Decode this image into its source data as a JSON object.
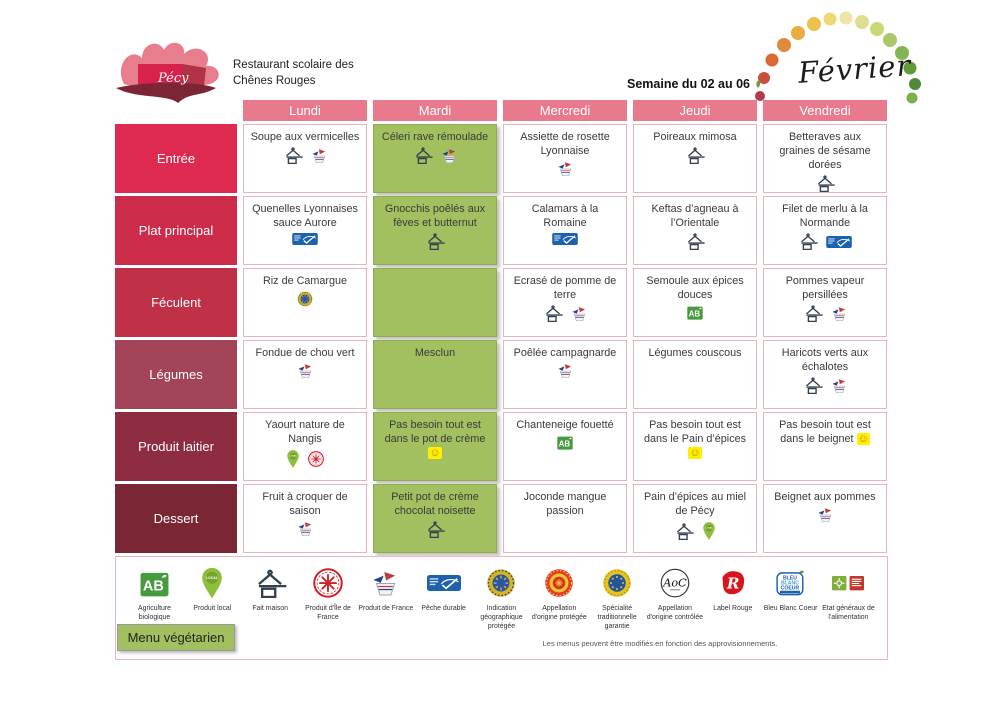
{
  "header": {
    "title_line1": "Restaurant scolaire des",
    "title_line2": "Chênes Rouges",
    "week": "Semaine du 02 au 06",
    "month": "Février",
    "logo_text": "Pécy"
  },
  "days": [
    "Lundi",
    "Mardi",
    "Mercredi",
    "Jeudi",
    "Vendredi"
  ],
  "colors": {
    "day_header": "#e9798c",
    "green_cell": "#a2c05f",
    "cell_border": "#eab3bc"
  },
  "menu": {
    "rows": [
      {
        "label": "Entrée",
        "color": "#de2950",
        "cells": [
          {
            "text": "Soupe aux vermicelles",
            "icons": [
              "fait-maison",
              "produit-de-france"
            ]
          },
          {
            "text": "Céleri rave rémoulade",
            "green": true,
            "icons": [
              "fait-maison",
              "produit-de-france"
            ]
          },
          {
            "text": "Assiette de rosette Lyonnaise",
            "icons": [
              "produit-de-france"
            ]
          },
          {
            "text": "Poireaux mimosa",
            "icons": [
              "fait-maison"
            ]
          },
          {
            "text": "Betteraves aux graines de sésame dorées",
            "icons": [
              "fait-maison"
            ]
          }
        ]
      },
      {
        "label": "Plat principal",
        "color": "#cd2b4a",
        "cells": [
          {
            "text": "Quenelles Lyonnaises sauce Aurore",
            "icons": [
              "peche-durable"
            ]
          },
          {
            "text": "Gnocchis poêlés aux fèves et butternut",
            "green": true,
            "icons": [
              "fait-maison"
            ]
          },
          {
            "text": "Calamars à la Romaine",
            "icons": [
              "peche-durable"
            ]
          },
          {
            "text": "Keftas d’agneau à l’Orientale",
            "icons": [
              "fait-maison"
            ]
          },
          {
            "text": "Filet de merlu à la Normande",
            "icons": [
              "fait-maison",
              "peche-durable"
            ]
          }
        ]
      },
      {
        "label": "Féculent",
        "color": "#c03148",
        "cells": [
          {
            "text": "Riz de Camargue",
            "icons": [
              "igp"
            ]
          },
          {
            "text": "",
            "green": true,
            "icons": []
          },
          {
            "text": "Ecrasé de pomme de terre",
            "icons": [
              "fait-maison",
              "produit-de-france"
            ]
          },
          {
            "text": "Semoule aux épices douces",
            "icons": [
              "agriculture-biologique"
            ]
          },
          {
            "text": "Pommes vapeur persillées",
            "icons": [
              "fait-maison",
              "produit-de-france"
            ]
          }
        ]
      },
      {
        "label": "Légumes",
        "color": "#a44458",
        "cells": [
          {
            "text": "Fondue de chou vert",
            "icons": [
              "produit-de-france"
            ]
          },
          {
            "text": "Mesclun",
            "green": true,
            "icons": []
          },
          {
            "text": "Poêlée campagnarde",
            "icons": [
              "produit-de-france"
            ]
          },
          {
            "text": "Légumes couscous",
            "icons": []
          },
          {
            "text": "Haricots verts aux échalotes",
            "icons": [
              "fait-maison",
              "produit-de-france"
            ]
          }
        ]
      },
      {
        "label": "Produit laitier",
        "color": "#8e2c41",
        "cells": [
          {
            "text": "Yaourt nature de Nangis",
            "icons": [
              "produit-local",
              "produit-ile-de-france"
            ]
          },
          {
            "text": "Pas besoin tout est dans le pot de crème",
            "green": true,
            "smiley": true,
            "icons": []
          },
          {
            "text": "Chanteneige fouetté",
            "icons": [
              "agriculture-biologique"
            ]
          },
          {
            "text": "Pas besoin tout est dans le Pain d’épices",
            "smiley": true,
            "icons": []
          },
          {
            "text": "Pas besoin tout est dans le beignet",
            "smiley": true,
            "icons": []
          }
        ]
      },
      {
        "label": "Dessert",
        "color": "#7b2634",
        "cells": [
          {
            "text": "Fruit à croquer de saison",
            "icons": [
              "produit-de-france"
            ]
          },
          {
            "text": "Petit pot de crème chocolat noisette",
            "green": true,
            "icons": [
              "fait-maison"
            ]
          },
          {
            "text": "Joconde mangue passion",
            "icons": []
          },
          {
            "text": "Pain d’épices au miel de Pécy",
            "icons": [
              "fait-maison",
              "produit-local"
            ]
          },
          {
            "text": "Beignet aux pommes",
            "icons": [
              "produit-de-france"
            ]
          }
        ]
      }
    ]
  },
  "legend": {
    "items": [
      {
        "icon": "agriculture-biologique",
        "label": "Agriculture biologique"
      },
      {
        "icon": "produit-local",
        "label": "Produit local"
      },
      {
        "icon": "fait-maison",
        "label": "Fait maison"
      },
      {
        "icon": "produit-ile-de-france",
        "label": "Produit d'Île de France"
      },
      {
        "icon": "produit-de-france",
        "label": "Produit de France"
      },
      {
        "icon": "peche-durable",
        "label": "Pêche durable"
      },
      {
        "icon": "igp",
        "label": "Indication géographique protégée"
      },
      {
        "icon": "aop",
        "label": "Appellation d'origine protégée"
      },
      {
        "icon": "stg",
        "label": "Spécialité traditionnelle garantie"
      },
      {
        "icon": "aoc",
        "label": "Appellation d'origine contrôlée"
      },
      {
        "icon": "label-rouge",
        "label": "Label Rouge"
      },
      {
        "icon": "bleu-blanc-coeur",
        "label": "Bleu Blanc Coeur"
      },
      {
        "icon": "egalim",
        "label": "Etat généraux de l'alimentation"
      }
    ]
  },
  "footer": {
    "vegetarian_label": "Menu végétarien",
    "note": "Les menus peuvent être modifiés en fonction des approvisionnements."
  }
}
